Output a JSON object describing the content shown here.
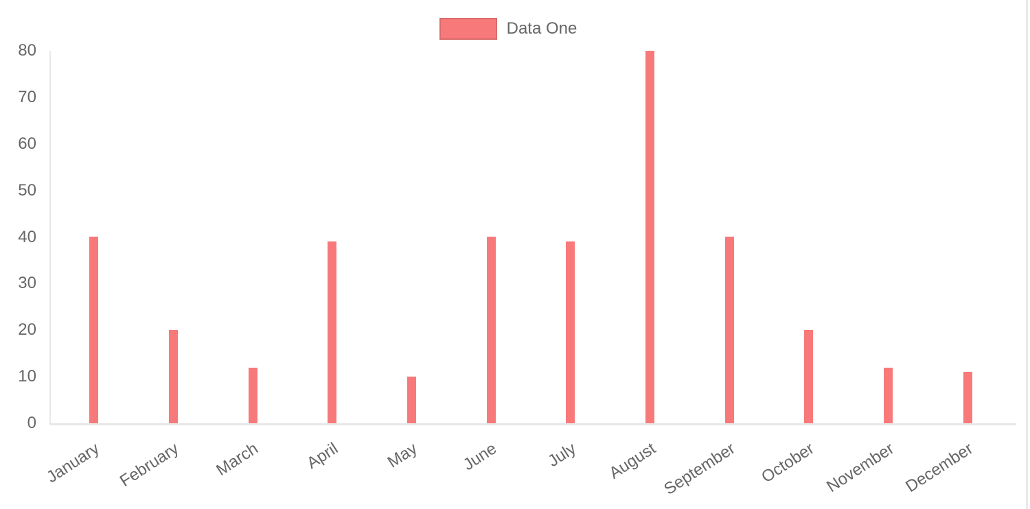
{
  "chart_data": {
    "type": "bar",
    "title": "",
    "xlabel": "",
    "ylabel": "",
    "categories": [
      "January",
      "February",
      "March",
      "April",
      "May",
      "June",
      "July",
      "August",
      "September",
      "October",
      "November",
      "December"
    ],
    "series": [
      {
        "name": "Data One",
        "color": "#f87979",
        "values": [
          40,
          20,
          12,
          39,
          10,
          40,
          39,
          80,
          40,
          20,
          12,
          11
        ]
      }
    ],
    "ylim": [
      0,
      80
    ],
    "yticks": [
      0,
      10,
      20,
      30,
      40,
      50,
      60,
      70,
      80
    ],
    "grid": false,
    "legend_position": "top",
    "x_label_rotation_deg": -33
  },
  "colors": {
    "bar": "#f87979",
    "axis_text": "#666666",
    "axis_line": "#e8e8e8",
    "page_edge_line": "#e9e9ea"
  }
}
